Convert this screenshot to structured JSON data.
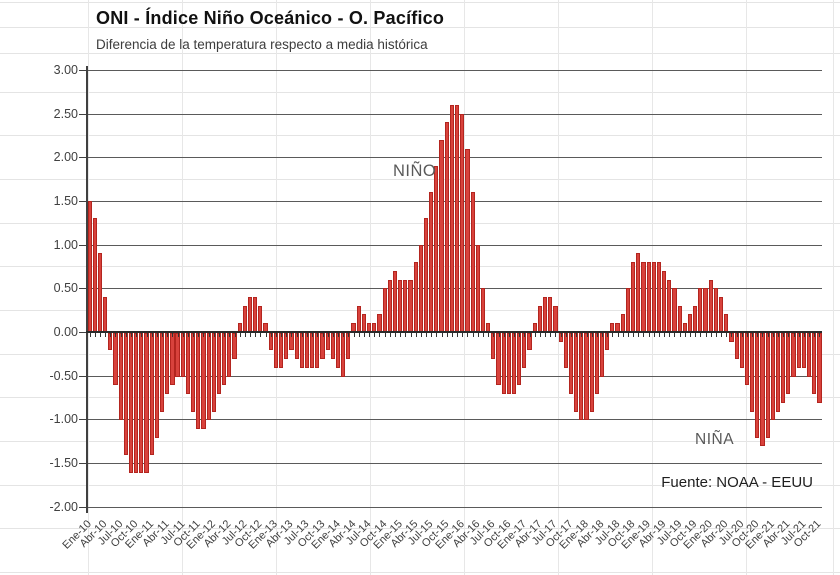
{
  "header": {
    "title": "ONI - Índice Niño Oceánico - O. Pacífico",
    "subtitle": "Diferencia de la temperatura respecto a media histórica"
  },
  "source_note": "Fuente: NOAA - EEUU",
  "colors": {
    "bar_fill": "#d8423c",
    "bar_edge": "#b3251f",
    "grid_major": "#5a5a5a",
    "grid_minor": "#e5e5e5",
    "axis_text": "#404040"
  },
  "chart_data": {
    "type": "bar",
    "title": "ONI - Índice Niño Oceánico - O. Pacífico",
    "subtitle": "Diferencia de la temperatura respecto a media histórica",
    "ylabel": "",
    "xlabel": "",
    "ylim": [
      -2.0,
      3.0
    ],
    "y_tick_step": 0.5,
    "grid": "on",
    "frequency": "monthly",
    "x_start": "Ene-10",
    "x_end": "Oct-21",
    "y_tick_labels": [
      "3.00",
      "2.50",
      "2.00",
      "1.50",
      "1.00",
      "0.50",
      "0.00",
      "-0.50",
      "-1.00",
      "-1.50",
      "-2.00"
    ],
    "x_tick_labels": [
      "Ene-10",
      "Abr-10",
      "Jul-10",
      "Oct-10",
      "Ene-11",
      "Abr-11",
      "Jul-11",
      "Oct-11",
      "Ene-12",
      "Abr-12",
      "Jul-12",
      "Oct-12",
      "Ene-13",
      "Abr-13",
      "Jul-13",
      "Oct-13",
      "Ene-14",
      "Abr-14",
      "Jul-14",
      "Oct-14",
      "Ene-15",
      "Abr-15",
      "Jul-15",
      "Oct-15",
      "Ene-16",
      "Abr-16",
      "Jul-16",
      "Oct-16",
      "Ene-17",
      "Abr-17",
      "Jul-17",
      "Oct-17",
      "Ene-18",
      "Abr-18",
      "Jul-18",
      "Oct-18",
      "Ene-19",
      "Abr-19",
      "Jul-19",
      "Oct-19",
      "Ene-20",
      "Abr-20",
      "Jul-20",
      "Oct-20",
      "Ene-21",
      "Abr-21",
      "Jul-21",
      "Oct-21"
    ],
    "x_tick_every_n_months": 3,
    "values": [
      1.5,
      1.3,
      0.9,
      0.4,
      -0.2,
      -0.6,
      -1.0,
      -1.4,
      -1.6,
      -1.6,
      -1.6,
      -1.6,
      -1.4,
      -1.2,
      -0.9,
      -0.7,
      -0.6,
      -0.5,
      -0.5,
      -0.7,
      -0.9,
      -1.1,
      -1.1,
      -1.0,
      -0.9,
      -0.7,
      -0.6,
      -0.5,
      -0.3,
      0.1,
      0.3,
      0.4,
      0.4,
      0.3,
      0.1,
      -0.2,
      -0.4,
      -0.4,
      -0.3,
      -0.2,
      -0.3,
      -0.4,
      -0.4,
      -0.4,
      -0.4,
      -0.3,
      -0.2,
      -0.3,
      -0.4,
      -0.5,
      -0.3,
      0.1,
      0.3,
      0.2,
      0.1,
      0.1,
      0.2,
      0.5,
      0.6,
      0.7,
      0.6,
      0.6,
      0.6,
      0.8,
      1.0,
      1.3,
      1.6,
      1.9,
      2.2,
      2.4,
      2.6,
      2.6,
      2.5,
      2.1,
      1.6,
      1.0,
      0.5,
      0.1,
      -0.3,
      -0.6,
      -0.7,
      -0.7,
      -0.7,
      -0.6,
      -0.4,
      -0.2,
      0.1,
      0.3,
      0.4,
      0.4,
      0.3,
      -0.1,
      -0.4,
      -0.7,
      -0.9,
      -1.0,
      -1.0,
      -0.9,
      -0.7,
      -0.5,
      -0.2,
      0.1,
      0.1,
      0.2,
      0.5,
      0.8,
      0.9,
      0.8,
      0.8,
      0.8,
      0.8,
      0.7,
      0.6,
      0.5,
      0.3,
      0.1,
      0.2,
      0.3,
      0.5,
      0.5,
      0.6,
      0.5,
      0.4,
      0.2,
      -0.1,
      -0.3,
      -0.4,
      -0.6,
      -0.9,
      -1.2,
      -1.3,
      -1.2,
      -1.0,
      -0.9,
      -0.8,
      -0.7,
      -0.5,
      -0.4,
      -0.4,
      -0.5,
      -0.7,
      -0.8
    ],
    "annotations": [
      {
        "id": "nino",
        "text": "NIÑO"
      },
      {
        "id": "nina",
        "text": "NIÑA"
      }
    ],
    "legend": "none"
  }
}
